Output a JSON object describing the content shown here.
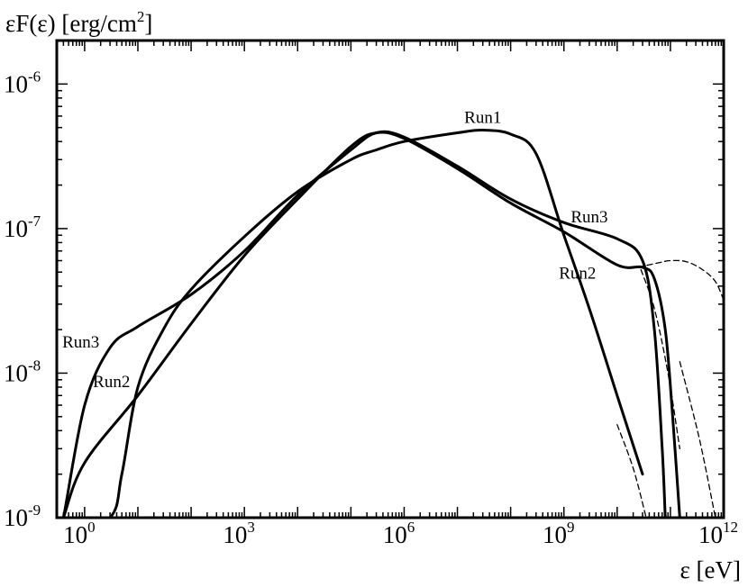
{
  "chart_data": {
    "type": "line",
    "title": "",
    "ylabel": "εF(ε) [erg/cm",
    "ylabel_sup": "2",
    "ylabel_suffix": "]",
    "xlabel": "ε [eV]",
    "xscale": "log",
    "yscale": "log",
    "xlim": [
      0.3,
      1000000000000.0
    ],
    "ylim": [
      1e-09,
      2e-06
    ],
    "grid": false,
    "legend": "none",
    "x_ticks": [
      {
        "base": "10",
        "exp": "0",
        "value": 1
      },
      {
        "base": "10",
        "exp": "3",
        "value": 1000
      },
      {
        "base": "10",
        "exp": "6",
        "value": 1000000
      },
      {
        "base": "10",
        "exp": "9",
        "value": 1000000000
      },
      {
        "base": "10",
        "exp": "12",
        "value": 1000000000000
      }
    ],
    "y_ticks": [
      {
        "base": "10",
        "exp": "-6",
        "value": 1e-06
      },
      {
        "base": "10",
        "exp": "-7",
        "value": 1e-07
      },
      {
        "base": "10",
        "exp": "-8",
        "value": 1e-08
      },
      {
        "base": "10",
        "exp": "-9",
        "value": 1e-09
      }
    ],
    "series": [
      {
        "name": "Run1",
        "style": "solid",
        "x": [
          0.4,
          3,
          5,
          10,
          30,
          100,
          1000,
          10000,
          100000,
          300000,
          1000000,
          10000000,
          30000000,
          100000000,
          300000000,
          1000000000,
          3000000000,
          10000000000,
          30000000000
        ],
        "y": [
          7e-10,
          1e-09,
          2e-09,
          8e-09,
          2e-08,
          3.8e-08,
          8.8e-08,
          1.8e-07,
          3e-07,
          3.5e-07,
          4e-07,
          4.6e-07,
          4.8e-07,
          4.5e-07,
          3.3e-07,
          9e-08,
          2.8e-08,
          7e-09,
          2e-09
        ]
      },
      {
        "name": "Run2",
        "style": "solid",
        "x": [
          0.3,
          0.4,
          1,
          10,
          100,
          1000,
          10000,
          100000,
          300000,
          1000000,
          10000000,
          100000000,
          1000000000,
          10000000000,
          30000000000,
          50000000000,
          80000000000,
          110000000000,
          150000000000
        ],
        "y": [
          7e-10,
          1e-09,
          2.4e-09,
          7e-09,
          2.2e-08,
          6.5e-08,
          1.6e-07,
          3.7e-07,
          4.6e-07,
          4.2e-07,
          2.6e-07,
          1.5e-07,
          9.5e-08,
          5.6e-08,
          5.4e-08,
          4.5e-08,
          2e-08,
          5e-09,
          1e-09
        ]
      },
      {
        "name": "Run3",
        "style": "solid",
        "x": [
          0.3,
          0.4,
          1,
          3,
          10,
          100,
          1000,
          10000,
          100000,
          300000,
          1000000,
          10000000,
          100000000,
          1000000000,
          10000000000,
          30000000000,
          50000000000,
          70000000000,
          80000000000
        ],
        "y": [
          7e-10,
          1e-09,
          6e-09,
          1.5e-08,
          2.1e-08,
          3.5e-08,
          7e-08,
          1.7e-07,
          3.5e-07,
          4.6e-07,
          4.3e-07,
          2.7e-07,
          1.6e-07,
          1.1e-07,
          8.5e-08,
          6e-08,
          2e-08,
          3e-09,
          1e-09
        ]
      },
      {
        "name": "",
        "style": "dashed",
        "x": [
          25000000000,
          60000000000,
          100000000000,
          200000000000,
          400000000000,
          700000000000,
          1000000000000
        ],
        "y": [
          5.4e-08,
          5.8e-08,
          6e-08,
          5.9e-08,
          5.2e-08,
          4.3e-08,
          3.2e-08
        ]
      },
      {
        "name": "",
        "style": "dashed",
        "x": [
          28000000000,
          50000000000,
          90000000000,
          150000000000
        ],
        "y": [
          5.2e-08,
          2.8e-08,
          1e-08,
          3e-09
        ]
      },
      {
        "name": "",
        "style": "dashed",
        "x": [
          10000000000,
          20000000000,
          35000000000
        ],
        "y": [
          4.4e-09,
          2.2e-09,
          1e-09
        ]
      },
      {
        "name": "",
        "style": "dashed",
        "x": [
          150000000000,
          350000000000,
          700000000000
        ],
        "y": [
          1.2e-08,
          3.5e-09,
          1e-09
        ]
      }
    ],
    "annotations": [
      {
        "text": "Run1",
        "x": 30000000,
        "y": 5.4e-07
      },
      {
        "text": "Run3",
        "x": 3000000000,
        "y": 1.1e-07
      },
      {
        "text": "Run2",
        "x": 1800000000,
        "y": 4.5e-08
      },
      {
        "text": "Run3",
        "x": 0.85,
        "y": 1.5e-08
      },
      {
        "text": "Run2",
        "x": 3.2,
        "y": 8e-09
      }
    ]
  }
}
